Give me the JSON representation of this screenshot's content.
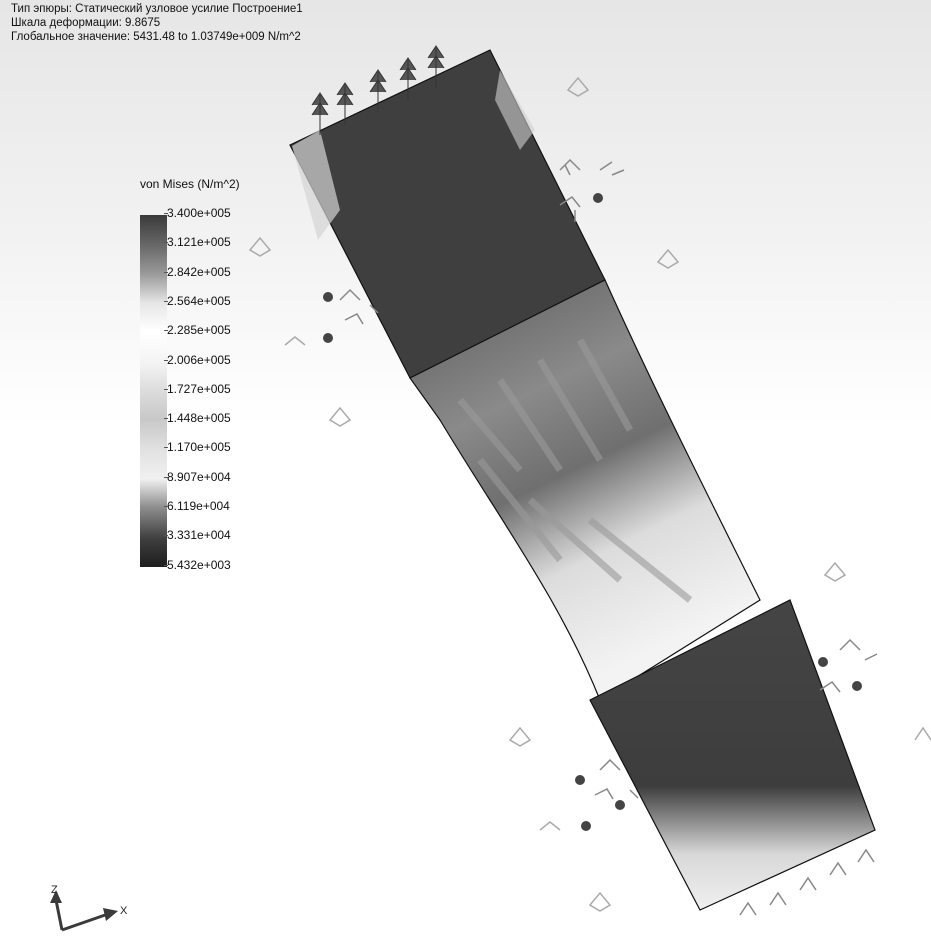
{
  "header": {
    "plot_type": "Тип эпюры: Статический узловое усилие Построение1",
    "deformation_scale": "Шкала деформации: 9.8675",
    "global_value": "Глобальное значение: 5431.48 to 1.03749e+009 N/m^2"
  },
  "legend": {
    "title": "von Mises (N/m^2)",
    "ticks": [
      "3.400e+005",
      "3.121e+005",
      "2.842e+005",
      "2.564e+005",
      "2.285e+005",
      "2.006e+005",
      "1.727e+005",
      "1.448e+005",
      "1.170e+005",
      "8.907e+004",
      "6.119e+004",
      "3.331e+004",
      "5.432e+003"
    ]
  },
  "triad": {
    "z": "Z",
    "x": "X"
  },
  "colors": {
    "dark": "#3d3d3d",
    "light": "#f4f4f4",
    "outline": "#111111"
  }
}
